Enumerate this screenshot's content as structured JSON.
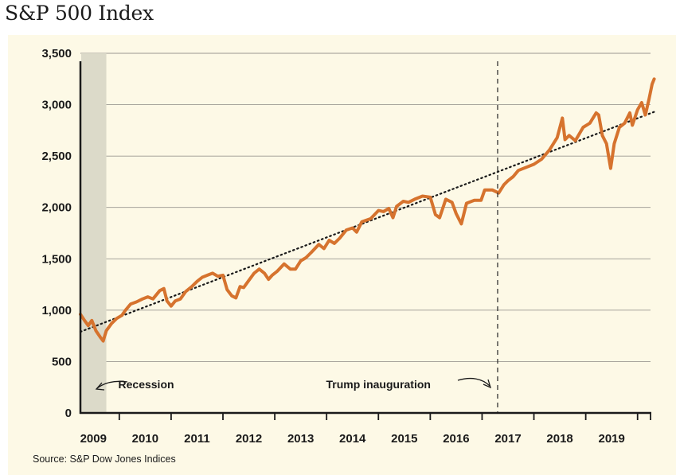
{
  "chart_data": {
    "type": "line",
    "title": "S&P 500 Index",
    "source": "Source: S&P Dow Jones Indices",
    "ylim": [
      0,
      3500
    ],
    "y_ticks": [
      {
        "value": 0,
        "label": "0"
      },
      {
        "value": 500,
        "label": "500"
      },
      {
        "value": 1000,
        "label": "1,000"
      },
      {
        "value": 1500,
        "label": "1,500"
      },
      {
        "value": 2000,
        "label": "2,000"
      },
      {
        "value": 2500,
        "label": "2,500"
      },
      {
        "value": 3000,
        "label": "3,000"
      },
      {
        "value": 3500,
        "label": "3,500"
      }
    ],
    "xlim": [
      2008.75,
      2019.75
    ],
    "x_ticks": [
      {
        "value": 2009,
        "label": "2009"
      },
      {
        "value": 2010,
        "label": "2010"
      },
      {
        "value": 2011,
        "label": "2011"
      },
      {
        "value": 2012,
        "label": "2012"
      },
      {
        "value": 2013,
        "label": "2013"
      },
      {
        "value": 2014,
        "label": "2014"
      },
      {
        "value": 2015,
        "label": "2015"
      },
      {
        "value": 2016,
        "label": "2016"
      },
      {
        "value": 2017,
        "label": "2017"
      },
      {
        "value": 2018,
        "label": "2018"
      },
      {
        "value": 2019,
        "label": "2019"
      }
    ],
    "grid": "horizontal",
    "series": [
      {
        "color": "#d6732e",
        "points": [
          [
            2008.75,
            960
          ],
          [
            2008.83,
            900
          ],
          [
            2008.9,
            850
          ],
          [
            2008.97,
            900
          ],
          [
            2009.05,
            800
          ],
          [
            2009.13,
            740
          ],
          [
            2009.19,
            700
          ],
          [
            2009.25,
            800
          ],
          [
            2009.35,
            870
          ],
          [
            2009.45,
            920
          ],
          [
            2009.55,
            950
          ],
          [
            2009.62,
            1000
          ],
          [
            2009.72,
            1060
          ],
          [
            2009.83,
            1080
          ],
          [
            2009.95,
            1110
          ],
          [
            2010.05,
            1130
          ],
          [
            2010.15,
            1110
          ],
          [
            2010.28,
            1190
          ],
          [
            2010.36,
            1210
          ],
          [
            2010.42,
            1090
          ],
          [
            2010.5,
            1040
          ],
          [
            2010.58,
            1090
          ],
          [
            2010.68,
            1110
          ],
          [
            2010.78,
            1180
          ],
          [
            2010.9,
            1230
          ],
          [
            2011.0,
            1280
          ],
          [
            2011.1,
            1320
          ],
          [
            2011.2,
            1340
          ],
          [
            2011.3,
            1360
          ],
          [
            2011.4,
            1330
          ],
          [
            2011.5,
            1340
          ],
          [
            2011.58,
            1200
          ],
          [
            2011.67,
            1140
          ],
          [
            2011.75,
            1120
          ],
          [
            2011.83,
            1230
          ],
          [
            2011.9,
            1220
          ],
          [
            2012.0,
            1290
          ],
          [
            2012.1,
            1360
          ],
          [
            2012.2,
            1400
          ],
          [
            2012.3,
            1360
          ],
          [
            2012.38,
            1300
          ],
          [
            2012.45,
            1340
          ],
          [
            2012.55,
            1380
          ],
          [
            2012.68,
            1450
          ],
          [
            2012.8,
            1400
          ],
          [
            2012.9,
            1400
          ],
          [
            2013.0,
            1480
          ],
          [
            2013.1,
            1510
          ],
          [
            2013.2,
            1560
          ],
          [
            2013.35,
            1640
          ],
          [
            2013.45,
            1600
          ],
          [
            2013.55,
            1680
          ],
          [
            2013.65,
            1650
          ],
          [
            2013.75,
            1700
          ],
          [
            2013.88,
            1780
          ],
          [
            2014.0,
            1800
          ],
          [
            2014.08,
            1760
          ],
          [
            2014.18,
            1860
          ],
          [
            2014.35,
            1890
          ],
          [
            2014.5,
            1970
          ],
          [
            2014.6,
            1960
          ],
          [
            2014.7,
            1990
          ],
          [
            2014.78,
            1900
          ],
          [
            2014.85,
            2010
          ],
          [
            2014.98,
            2060
          ],
          [
            2015.08,
            2050
          ],
          [
            2015.2,
            2080
          ],
          [
            2015.35,
            2110
          ],
          [
            2015.5,
            2100
          ],
          [
            2015.6,
            1930
          ],
          [
            2015.68,
            1900
          ],
          [
            2015.8,
            2080
          ],
          [
            2015.92,
            2050
          ],
          [
            2016.0,
            1940
          ],
          [
            2016.1,
            1840
          ],
          [
            2016.2,
            2040
          ],
          [
            2016.35,
            2070
          ],
          [
            2016.48,
            2070
          ],
          [
            2016.55,
            2170
          ],
          [
            2016.7,
            2170
          ],
          [
            2016.82,
            2140
          ],
          [
            2016.92,
            2220
          ],
          [
            2017.0,
            2260
          ],
          [
            2017.1,
            2300
          ],
          [
            2017.2,
            2360
          ],
          [
            2017.35,
            2390
          ],
          [
            2017.5,
            2420
          ],
          [
            2017.65,
            2470
          ],
          [
            2017.8,
            2560
          ],
          [
            2017.95,
            2680
          ],
          [
            2018.05,
            2870
          ],
          [
            2018.1,
            2660
          ],
          [
            2018.18,
            2700
          ],
          [
            2018.3,
            2650
          ],
          [
            2018.45,
            2780
          ],
          [
            2018.58,
            2820
          ],
          [
            2018.7,
            2920
          ],
          [
            2018.75,
            2900
          ],
          [
            2018.82,
            2700
          ],
          [
            2018.9,
            2620
          ],
          [
            2018.98,
            2380
          ],
          [
            2019.05,
            2620
          ],
          [
            2019.15,
            2780
          ],
          [
            2019.25,
            2820
          ],
          [
            2019.35,
            2920
          ],
          [
            2019.4,
            2800
          ],
          [
            2019.5,
            2950
          ],
          [
            2019.58,
            3020
          ],
          [
            2019.65,
            2900
          ],
          [
            2019.72,
            3050
          ],
          [
            2019.78,
            3200
          ],
          [
            2019.82,
            3250
          ]
        ]
      },
      {
        "style": "dotted",
        "color": "#1a1a1a",
        "points": [
          [
            2008.75,
            790
          ],
          [
            2019.82,
            2930
          ]
        ]
      }
    ],
    "shaded_region": {
      "x0": 2008.75,
      "x1": 2009.25,
      "color": "#dcdac9"
    },
    "vertical_marker": {
      "x": 2016.8,
      "style": "dashed"
    },
    "annotations": [
      {
        "label": "Recession",
        "x": 2009.48,
        "y": 280
      },
      {
        "label": "Trump inauguration",
        "x": 2013.49,
        "y": 280
      }
    ]
  }
}
